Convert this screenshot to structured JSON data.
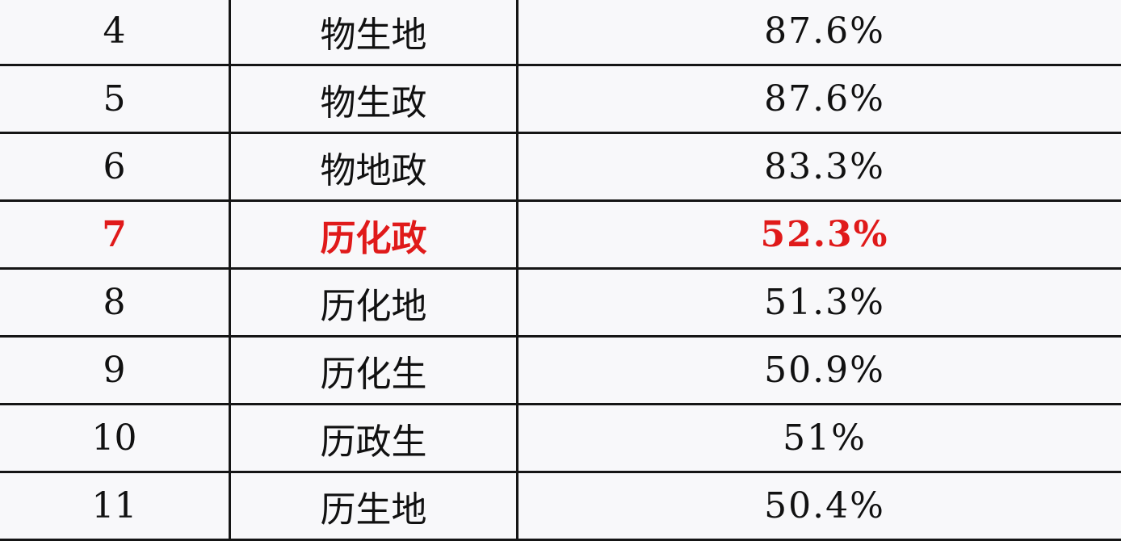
{
  "highlight_color": "#e01a1a",
  "rows": [
    {
      "rank": "4",
      "combo": "物生地",
      "rate": "87.6%",
      "highlight": false
    },
    {
      "rank": "5",
      "combo": "物生政",
      "rate": "87.6%",
      "highlight": false
    },
    {
      "rank": "6",
      "combo": "物地政",
      "rate": "83.3%",
      "highlight": false
    },
    {
      "rank": "7",
      "combo": "历化政",
      "rate": "52.3%",
      "highlight": true
    },
    {
      "rank": "8",
      "combo": "历化地",
      "rate": "51.3%",
      "highlight": false
    },
    {
      "rank": "9",
      "combo": "历化生",
      "rate": "50.9%",
      "highlight": false
    },
    {
      "rank": "10",
      "combo": "历政生",
      "rate": "51%",
      "highlight": false
    },
    {
      "rank": "11",
      "combo": "历生地",
      "rate": "50.4%",
      "highlight": false
    }
  ]
}
